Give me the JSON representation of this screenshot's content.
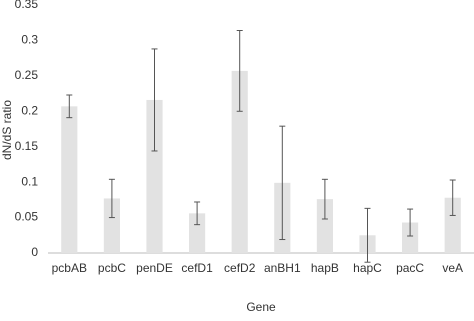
{
  "chart_data": {
    "type": "bar",
    "x_label": "Gene",
    "y_label": "dN/dS ratio",
    "categories": [
      "pcbAB",
      "pcbC",
      "penDE",
      "cefD1",
      "cefD2",
      "anBH1",
      "hapB",
      "hapC",
      "pacC",
      "veA"
    ],
    "values": [
      0.207,
      0.077,
      0.216,
      0.056,
      0.257,
      0.099,
      0.076,
      0.025,
      0.043,
      0.078
    ],
    "errors": [
      0.016,
      0.027,
      0.072,
      0.016,
      0.057,
      0.08,
      0.028,
      0.038,
      0.019,
      0.025
    ],
    "color": "#e2e2e2",
    "error_color": "#555555",
    "ylim": [
      0,
      0.35
    ],
    "yticks": [
      0,
      0.05,
      0.1,
      0.15,
      0.2,
      0.25,
      0.3,
      0.35
    ],
    "grid": false
  }
}
